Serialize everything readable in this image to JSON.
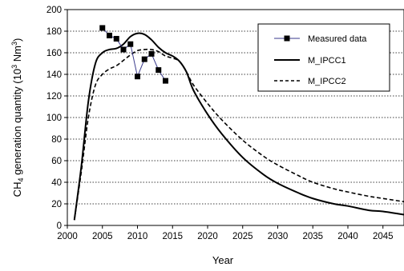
{
  "chart_data": {
    "type": "line",
    "xlabel": "Year",
    "ylabel": "CH4 generation quantity (10³ Nm³)",
    "ylabel_parts": {
      "pre": "CH",
      "sub": "4",
      "mid": " generation quantity (10",
      "sup1": "3",
      "mid2": " Nm",
      "sup2": "3",
      "post": ")"
    },
    "xlim": [
      2000,
      2048
    ],
    "ylim": [
      0,
      200
    ],
    "xticks": [
      2000,
      2005,
      2010,
      2015,
      2020,
      2025,
      2030,
      2035,
      2040,
      2045
    ],
    "yticks": [
      0,
      20,
      40,
      60,
      80,
      100,
      120,
      140,
      160,
      180,
      200
    ],
    "grid": "horizontal-dotted",
    "legend_position": "top-right",
    "series": [
      {
        "name": "Measured data",
        "style": "markers-thin-line",
        "color": "#000000",
        "line_color": "#3a3a8c",
        "x": [
          2005,
          2006,
          2007,
          2008,
          2009,
          2010,
          2011,
          2012,
          2013,
          2014
        ],
        "y": [
          183,
          176,
          173,
          163,
          168,
          138,
          154,
          159,
          144,
          134
        ]
      },
      {
        "name": "M_IPCC1",
        "style": "solid",
        "color": "#000000",
        "x": [
          2001,
          2002,
          2003,
          2004,
          2005,
          2006,
          2007,
          2008,
          2009,
          2010,
          2011,
          2012,
          2013,
          2014,
          2015,
          2016,
          2017,
          2018,
          2020,
          2022,
          2025,
          2028,
          2030,
          2033,
          2035,
          2038,
          2040,
          2043,
          2045,
          2048
        ],
        "y": [
          5,
          55,
          115,
          150,
          160,
          163,
          164,
          168,
          175,
          178,
          177,
          172,
          165,
          160,
          157,
          152,
          142,
          125,
          103,
          85,
          63,
          47,
          39,
          30,
          25,
          20,
          18,
          14,
          13,
          10
        ]
      },
      {
        "name": "M_IPCC2",
        "style": "dashed",
        "color": "#000000",
        "x": [
          2001,
          2002,
          2003,
          2004,
          2005,
          2006,
          2007,
          2008,
          2009,
          2010,
          2011,
          2012,
          2013,
          2014,
          2015,
          2016,
          2017,
          2018,
          2020,
          2022,
          2025,
          2028,
          2030,
          2033,
          2035,
          2038,
          2040,
          2043,
          2045,
          2048
        ],
        "y": [
          5,
          50,
          100,
          130,
          140,
          145,
          148,
          153,
          158,
          162,
          163,
          163,
          161,
          157,
          155,
          152,
          142,
          130,
          113,
          98,
          79,
          64,
          56,
          46,
          40,
          34,
          31,
          27,
          25,
          22
        ]
      }
    ]
  }
}
